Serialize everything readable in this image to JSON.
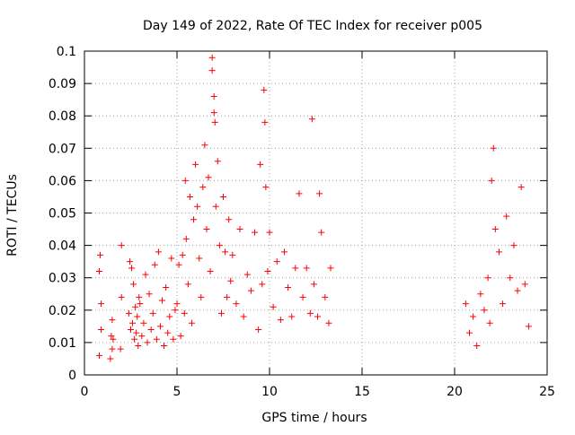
{
  "chart_data": {
    "type": "scatter",
    "title": "Day 149 of 2022, Rate Of TEC Index for receiver p005",
    "xlabel": "GPS time / hours",
    "ylabel": "ROTI / TECUs",
    "xlim": [
      0,
      25
    ],
    "ylim": [
      0,
      0.1
    ],
    "xticks": [
      0,
      5,
      10,
      15,
      20,
      25
    ],
    "yticks": [
      0,
      0.01,
      0.02,
      0.03,
      0.04,
      0.05,
      0.06,
      0.07,
      0.08,
      0.09,
      0.1
    ],
    "grid": true,
    "marker": "+",
    "color": "#ff0000",
    "series": [
      {
        "x": [
          0.8,
          0.8,
          0.85,
          0.9,
          0.9,
          1.4,
          1.45,
          1.5,
          1.5,
          1.55,
          1.95,
          2.0,
          2.0,
          2.4,
          2.45,
          2.5,
          2.55,
          2.6,
          2.65,
          2.7,
          2.75,
          2.8,
          2.85,
          2.9,
          2.95,
          3.0,
          3.1,
          3.2,
          3.3,
          3.4,
          3.5,
          3.6,
          3.7,
          3.8,
          3.9,
          4.0,
          4.1,
          4.2,
          4.3,
          4.4,
          4.5,
          4.6,
          4.7,
          4.8,
          4.9,
          5.0,
          5.1,
          5.2,
          5.3,
          5.4,
          5.45,
          5.5,
          5.6,
          5.7,
          5.8,
          5.9,
          6.0,
          6.1,
          6.2,
          6.3,
          6.4,
          6.5,
          6.6,
          6.7,
          6.8,
          6.9,
          6.9,
          7.0,
          7.0,
          7.05,
          7.1,
          7.2,
          7.3,
          7.4,
          7.5,
          7.6,
          7.7,
          7.8,
          7.9,
          8.0,
          8.2,
          8.4,
          8.6,
          8.8,
          9.0,
          9.2,
          9.4,
          9.5,
          9.6,
          9.7,
          9.75,
          9.8,
          9.9,
          10.0,
          10.2,
          10.4,
          10.6,
          10.8,
          11.0,
          11.2,
          11.4,
          11.6,
          11.8,
          12.0,
          12.2,
          12.3,
          12.4,
          12.6,
          12.7,
          12.8,
          13.0,
          13.2,
          13.3,
          20.6,
          20.8,
          21.0,
          21.2,
          21.4,
          21.6,
          21.8,
          21.9,
          22.0,
          22.1,
          22.2,
          22.4,
          22.6,
          22.8,
          23.0,
          23.2,
          23.4,
          23.6,
          23.8,
          24.0
        ],
        "y": [
          0.006,
          0.032,
          0.037,
          0.014,
          0.022,
          0.005,
          0.012,
          0.017,
          0.008,
          0.011,
          0.008,
          0.04,
          0.024,
          0.019,
          0.035,
          0.014,
          0.033,
          0.016,
          0.028,
          0.011,
          0.021,
          0.013,
          0.018,
          0.009,
          0.024,
          0.022,
          0.012,
          0.016,
          0.031,
          0.01,
          0.025,
          0.014,
          0.019,
          0.034,
          0.011,
          0.038,
          0.015,
          0.023,
          0.009,
          0.027,
          0.013,
          0.018,
          0.036,
          0.011,
          0.02,
          0.022,
          0.034,
          0.012,
          0.037,
          0.019,
          0.06,
          0.042,
          0.028,
          0.055,
          0.016,
          0.048,
          0.065,
          0.052,
          0.036,
          0.024,
          0.058,
          0.071,
          0.045,
          0.061,
          0.032,
          0.098,
          0.094,
          0.081,
          0.086,
          0.078,
          0.052,
          0.066,
          0.04,
          0.019,
          0.055,
          0.038,
          0.024,
          0.048,
          0.029,
          0.037,
          0.022,
          0.045,
          0.018,
          0.031,
          0.026,
          0.044,
          0.014,
          0.065,
          0.028,
          0.088,
          0.078,
          0.058,
          0.032,
          0.044,
          0.021,
          0.035,
          0.017,
          0.038,
          0.027,
          0.018,
          0.033,
          0.056,
          0.024,
          0.033,
          0.019,
          0.079,
          0.028,
          0.018,
          0.056,
          0.044,
          0.024,
          0.016,
          0.033,
          0.022,
          0.013,
          0.018,
          0.009,
          0.025,
          0.02,
          0.03,
          0.016,
          0.06,
          0.07,
          0.045,
          0.038,
          0.022,
          0.049,
          0.03,
          0.04,
          0.026,
          0.058,
          0.028,
          0.015
        ]
      }
    ]
  }
}
